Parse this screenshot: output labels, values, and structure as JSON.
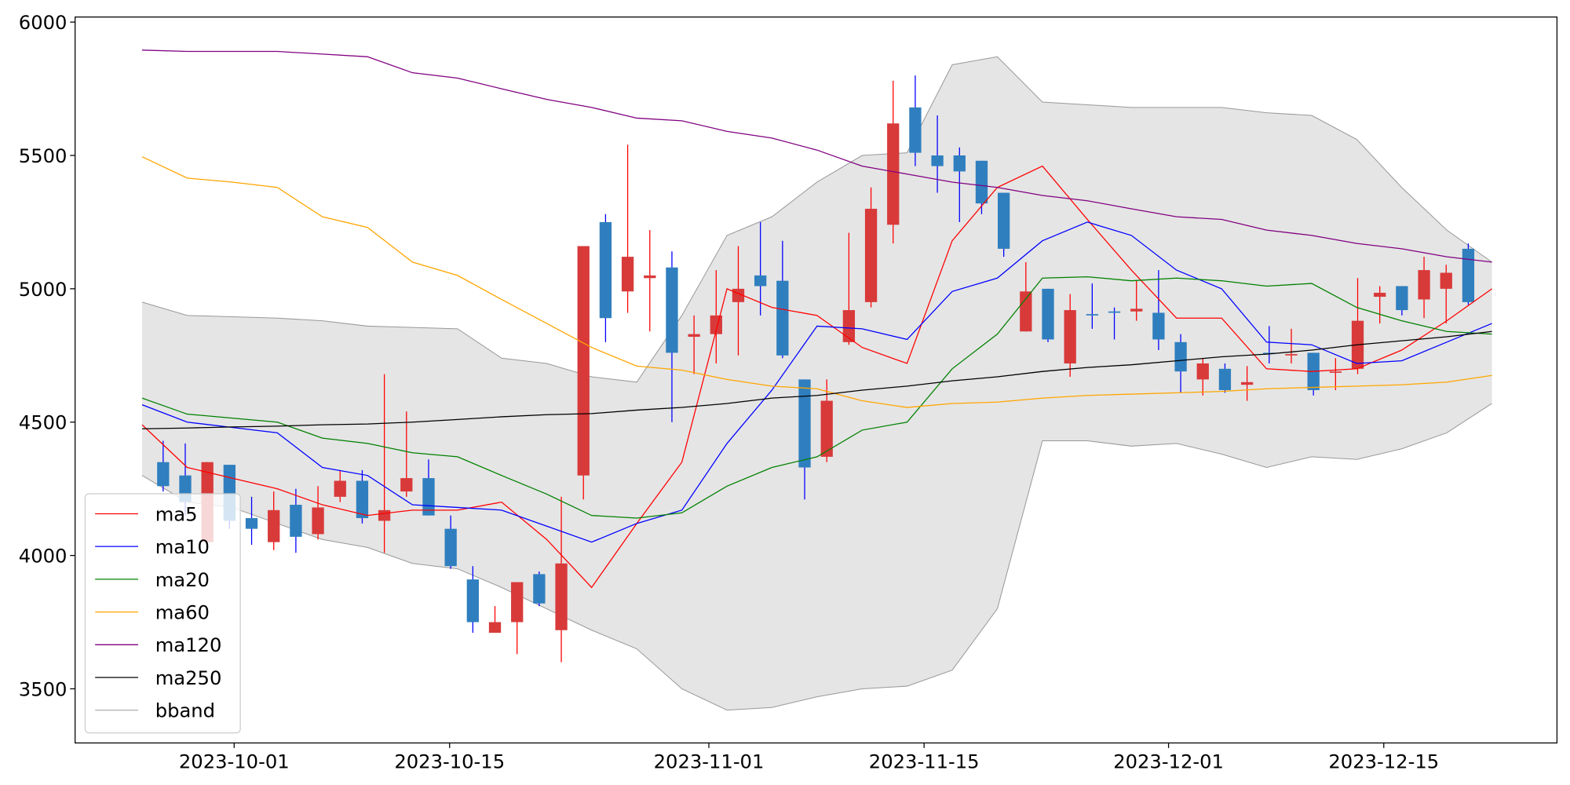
{
  "chart_data": {
    "type": "candlestick",
    "x": [
      0,
      1,
      2,
      3,
      4,
      5,
      6,
      7,
      8,
      9,
      10,
      11,
      12,
      13,
      14,
      15,
      16,
      17,
      18,
      19,
      20,
      21,
      22,
      23,
      24,
      25,
      26,
      27,
      28,
      29,
      30,
      31,
      32,
      33,
      34,
      35,
      36,
      37,
      38,
      39,
      40,
      41,
      42,
      43,
      44,
      45,
      46,
      47,
      48,
      49,
      50,
      51,
      52,
      53,
      54,
      55,
      56,
      57,
      58,
      59
    ],
    "open": [
      4350,
      4300,
      4050,
      4340,
      4140,
      4050,
      4190,
      4080,
      4220,
      4280,
      4130,
      4240,
      4290,
      4100,
      3910,
      3710,
      3750,
      3930,
      3720,
      4300,
      5250,
      4990,
      5040,
      5080,
      4820,
      4830,
      4950,
      5050,
      5030,
      4660,
      4370,
      4800,
      4950,
      5240,
      5680,
      5500,
      5500,
      5480,
      5360,
      4840,
      5000,
      4720,
      4905,
      4915,
      4915,
      4910,
      4800,
      4660,
      4700,
      4640,
      4760,
      4750,
      4760,
      4685,
      4700,
      4970,
      5010,
      4960,
      5000,
      5150
    ],
    "high": [
      4430,
      4420,
      4350,
      4340,
      4220,
      4240,
      4250,
      4260,
      4320,
      4320,
      4680,
      4540,
      4360,
      4150,
      3960,
      3810,
      3900,
      3940,
      4220,
      5160,
      5280,
      5540,
      5220,
      5140,
      4900,
      5070,
      5160,
      5250,
      5180,
      4660,
      4660,
      5210,
      5380,
      5780,
      5800,
      5650,
      5530,
      5480,
      5360,
      5100,
      5000,
      4980,
      5020,
      4930,
      5030,
      5070,
      4830,
      4740,
      4720,
      4710,
      4860,
      4850,
      4760,
      4740,
      5040,
      5010,
      5010,
      5120,
      5090,
      5170
    ],
    "low": [
      4240,
      4150,
      4050,
      4100,
      4040,
      4020,
      4010,
      4060,
      4200,
      4120,
      4010,
      4220,
      4150,
      3950,
      3710,
      3710,
      3630,
      3810,
      3600,
      4210,
      4800,
      4910,
      4840,
      4500,
      4680,
      4720,
      4750,
      4900,
      4740,
      4210,
      4350,
      4790,
      4930,
      5170,
      5460,
      5360,
      5250,
      5280,
      5120,
      4840,
      4800,
      4670,
      4850,
      4810,
      4880,
      4770,
      4610,
      4600,
      4610,
      4580,
      4720,
      4720,
      4600,
      4620,
      4680,
      4870,
      4900,
      4890,
      4870,
      4940
    ],
    "close": [
      4260,
      4200,
      4350,
      4130,
      4100,
      4170,
      4070,
      4180,
      4280,
      4140,
      4170,
      4290,
      4150,
      3960,
      3750,
      3750,
      3900,
      3820,
      3970,
      5160,
      4890,
      5120,
      5050,
      4760,
      4830,
      4900,
      5000,
      5010,
      4750,
      4330,
      4580,
      4920,
      5300,
      5620,
      5510,
      5460,
      5440,
      5320,
      5150,
      4990,
      4810,
      4920,
      4900,
      4910,
      4925,
      4810,
      4690,
      4720,
      4620,
      4650,
      4755,
      4755,
      4620,
      4690,
      4880,
      4985,
      4920,
      5070,
      5060,
      4950
    ],
    "up_color": "#d83a3a",
    "up_wick": "#ff0000",
    "down_color": "#2f7fbf",
    "down_wick": "#0000ff",
    "lines": {
      "x": [
        -0.95,
        1.09,
        3.12,
        5.16,
        7.2,
        9.24,
        11.27,
        13.31,
        15.3,
        17.34,
        19.37,
        21.41,
        23.45,
        25.49,
        27.52,
        29.56,
        31.6,
        33.63,
        35.67,
        37.71,
        39.75,
        41.78,
        43.77,
        45.81,
        47.85,
        49.88,
        51.92,
        53.96,
        55.99,
        58.03,
        60.07
      ],
      "series": [
        {
          "name": "ma5",
          "color": "#ff0000",
          "values": [
            4490,
            4330,
            4290,
            4250,
            4190,
            4150,
            4170,
            4170,
            4200,
            4060,
            3880,
            4120,
            4350,
            5000,
            4930,
            4900,
            4780,
            4720,
            5180,
            5380,
            5460,
            5260,
            5070,
            4890,
            4890,
            4700,
            4690,
            4700,
            4770,
            4880,
            5000
          ]
        },
        {
          "name": "ma10",
          "color": "#0000ff",
          "values": [
            4565,
            4500,
            4480,
            4460,
            4330,
            4300,
            4190,
            4180,
            4170,
            4110,
            4050,
            4120,
            4170,
            4420,
            4620,
            4860,
            4850,
            4810,
            4990,
            5040,
            5180,
            5250,
            5200,
            5070,
            5000,
            4800,
            4790,
            4720,
            4730,
            4800,
            4870
          ]
        },
        {
          "name": "ma20",
          "color": "#008000",
          "values": [
            4590,
            4530,
            4515,
            4500,
            4440,
            4420,
            4385,
            4370,
            4300,
            4230,
            4150,
            4140,
            4160,
            4260,
            4330,
            4370,
            4470,
            4500,
            4700,
            4830,
            5040,
            5045,
            5030,
            5040,
            5030,
            5010,
            5020,
            4930,
            4880,
            4840,
            4830
          ]
        },
        {
          "name": "ma60",
          "color": "#ffa500",
          "values": [
            5495,
            5415,
            5400,
            5380,
            5270,
            5230,
            5100,
            5050,
            4960,
            4870,
            4780,
            4710,
            4695,
            4660,
            4635,
            4625,
            4580,
            4555,
            4570,
            4575,
            4590,
            4600,
            4605,
            4610,
            4615,
            4625,
            4630,
            4635,
            4640,
            4650,
            4675
          ]
        },
        {
          "name": "ma120",
          "color": "#800080",
          "values": [
            5895,
            5890,
            5890,
            5890,
            5880,
            5870,
            5810,
            5790,
            5750,
            5710,
            5680,
            5640,
            5630,
            5590,
            5565,
            5520,
            5460,
            5430,
            5400,
            5380,
            5350,
            5330,
            5300,
            5270,
            5260,
            5220,
            5200,
            5170,
            5150,
            5120,
            5100
          ]
        },
        {
          "name": "ma250",
          "color": "#000000",
          "values": [
            4475,
            4478,
            4482,
            4485,
            4490,
            4493,
            4500,
            4510,
            4520,
            4528,
            4532,
            4545,
            4555,
            4570,
            4590,
            4600,
            4620,
            4635,
            4655,
            4670,
            4690,
            4705,
            4715,
            4730,
            4745,
            4755,
            4770,
            4790,
            4805,
            4820,
            4840
          ]
        }
      ]
    },
    "band": {
      "name": "bband",
      "color": "#999999",
      "fill": "#e5e5e5",
      "upper": [
        4950,
        4900,
        4895,
        4890,
        4880,
        4860,
        4855,
        4850,
        4740,
        4720,
        4670,
        4650,
        4900,
        5200,
        5270,
        5400,
        5500,
        5510,
        5840,
        5870,
        5700,
        5690,
        5680,
        5680,
        5680,
        5660,
        5650,
        5560,
        5380,
        5220,
        5100
      ],
      "lower": [
        4300,
        4200,
        4180,
        4120,
        4060,
        4030,
        3970,
        3950,
        3880,
        3800,
        3720,
        3650,
        3500,
        3420,
        3430,
        3470,
        3500,
        3510,
        3570,
        3800,
        4430,
        4430,
        4410,
        4420,
        4380,
        4330,
        4370,
        4360,
        4400,
        4460,
        4570
      ]
    },
    "xlim": [
      -3.98,
      63.01
    ],
    "ylim": [
      3297,
      6019
    ],
    "xticks": [
      {
        "value": 3.21,
        "label": "2023-10-01"
      },
      {
        "value": 12.95,
        "label": "2023-10-15"
      },
      {
        "value": 24.67,
        "label": "2023-11-01"
      },
      {
        "value": 34.4,
        "label": "2023-11-15"
      },
      {
        "value": 45.45,
        "label": "2023-12-01"
      },
      {
        "value": 55.18,
        "label": "2023-12-15"
      }
    ],
    "yticks": [
      3500,
      4000,
      4500,
      5000,
      5500,
      6000
    ],
    "legend": "lower left"
  }
}
